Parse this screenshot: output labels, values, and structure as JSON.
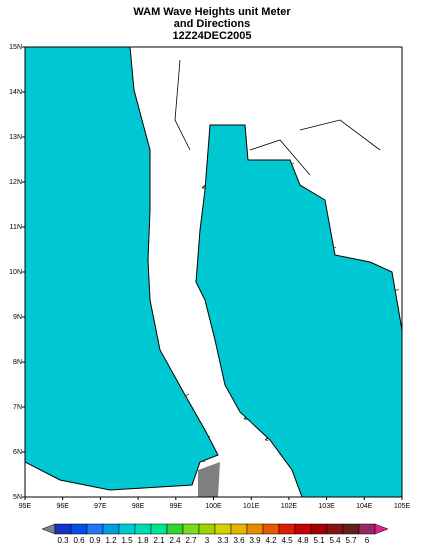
{
  "title": [
    "WAM Wave Heights unit Meter",
    "and Directions",
    "12Z24DEC2005"
  ],
  "map": {
    "lon_labels": [
      "95E",
      "96E",
      "97E",
      "98E",
      "99E",
      "100E",
      "101E",
      "102E",
      "103E",
      "104E",
      "105E"
    ],
    "lat_labels": [
      "15N",
      "14N",
      "13N",
      "12N",
      "11N",
      "10N",
      "9N",
      "8N",
      "7N",
      "6N",
      "5N"
    ]
  },
  "colorbar": {
    "labels": [
      0.3,
      0.6,
      0.9,
      1.2,
      1.5,
      1.8,
      2.1,
      2.4,
      2.7,
      3,
      3.3,
      3.6,
      3.9,
      4.2,
      4.5,
      4.8,
      5.1,
      5.4,
      5.7,
      6
    ],
    "colors": [
      "#808080",
      "#1432c8",
      "#0050e6",
      "#1e78f0",
      "#00a0dc",
      "#00c8d2",
      "#00dcb4",
      "#00e68c",
      "#32d232",
      "#78dc1e",
      "#a0d200",
      "#d2d200",
      "#e6b400",
      "#e68c00",
      "#e65a00",
      "#dc1e00",
      "#c80000",
      "#a00000",
      "#821414",
      "#641e1e",
      "#962864",
      "#e61e96"
    ]
  }
}
